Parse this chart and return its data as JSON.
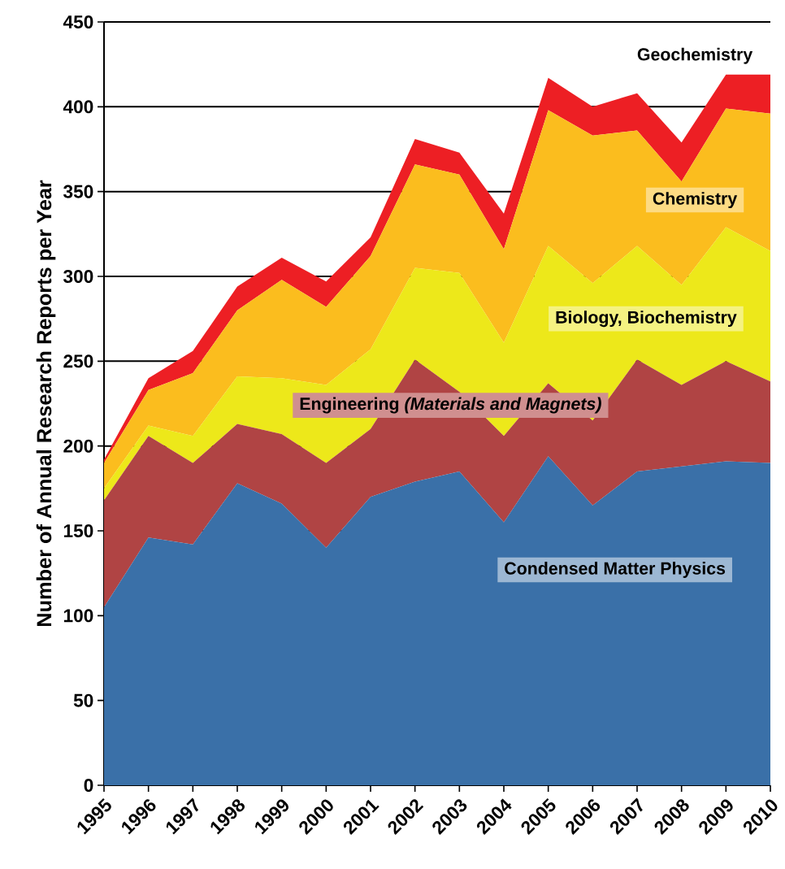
{
  "chart_data": {
    "type": "area",
    "stacked": true,
    "ylabel": "Number of Annual Research Reports per Year",
    "x": [
      1995,
      1996,
      1997,
      1998,
      1999,
      2000,
      2001,
      2002,
      2003,
      2004,
      2005,
      2006,
      2007,
      2008,
      2009,
      2010
    ],
    "xlim": [
      1995,
      2010
    ],
    "xticks": [
      1995,
      1996,
      1997,
      1998,
      1999,
      2000,
      2001,
      2002,
      2003,
      2004,
      2005,
      2006,
      2007,
      2008,
      2009,
      2010
    ],
    "ylim": [
      0,
      450
    ],
    "yticks": [
      0,
      50,
      100,
      150,
      200,
      250,
      300,
      350,
      400,
      450
    ],
    "grid": "y",
    "legend": false,
    "series": [
      {
        "name": "Condensed Matter Physics",
        "color": "#3a70a8",
        "values": [
          105,
          146,
          142,
          178,
          166,
          140,
          170,
          179,
          185,
          155,
          194,
          165,
          185,
          188,
          191,
          190
        ]
      },
      {
        "name": "Engineering *(Materials and Magnets)*",
        "color": "#b04444",
        "values": [
          63,
          60,
          48,
          35,
          41,
          50,
          40,
          72,
          47,
          51,
          43,
          50,
          66,
          48,
          59,
          48
        ]
      },
      {
        "name": "Biology, Biochemistry",
        "color": "#ede81a",
        "values": [
          7,
          6,
          16,
          28,
          33,
          46,
          47,
          54,
          70,
          55,
          81,
          81,
          67,
          59,
          79,
          77
        ]
      },
      {
        "name": "Chemistry",
        "color": "#fbbd1e",
        "values": [
          15,
          21,
          37,
          39,
          58,
          46,
          55,
          61,
          58,
          55,
          80,
          87,
          68,
          61,
          70,
          81
        ]
      },
      {
        "name": "Geochemistry",
        "color": "#ed1f24",
        "values": [
          2,
          7,
          13,
          14,
          13,
          15,
          11,
          15,
          13,
          21,
          19,
          17,
          22,
          23,
          20,
          23
        ]
      }
    ]
  }
}
